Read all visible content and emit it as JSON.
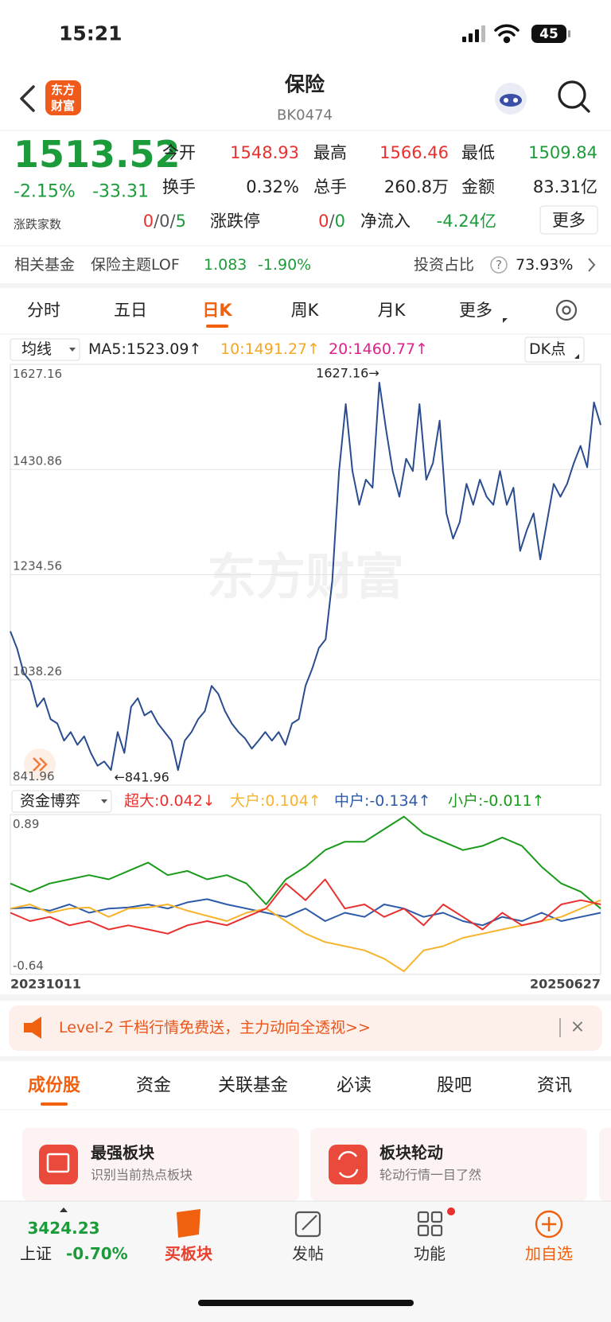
{
  "status_bar": {
    "time": "15:21",
    "battery": "45"
  },
  "header": {
    "logo": [
      "东方",
      "财富"
    ],
    "title": "保险",
    "code": "BK0474"
  },
  "quote": {
    "price": "1513.52",
    "change_pct": "-2.15%",
    "change": "-33.31",
    "stats": [
      {
        "label": "今开",
        "value": "1548.93",
        "color": "#e8312f"
      },
      {
        "label": "最高",
        "value": "1566.46",
        "color": "#e8312f"
      },
      {
        "label": "最低",
        "value": "1509.84",
        "color": "#1c9b3a"
      },
      {
        "label": "换手",
        "value": "0.32%",
        "color": "#222"
      },
      {
        "label": "总手",
        "value": "260.8万",
        "color": "#222"
      },
      {
        "label": "金额",
        "value": "83.31亿",
        "color": "#222"
      }
    ],
    "breadth_label": "涨跌家数",
    "breadth": [
      {
        "text": "0",
        "color": "#e8312f"
      },
      {
        "text": "/0/",
        "color": "#555"
      },
      {
        "text": "5",
        "color": "#1c9b3a"
      }
    ],
    "limit_label": "涨跌停",
    "limit": [
      {
        "text": "0",
        "color": "#e8312f"
      },
      {
        "text": "/",
        "color": "#555"
      },
      {
        "text": "0",
        "color": "#1c9b3a"
      }
    ],
    "net_inflow_label": "净流入",
    "net_inflow": "-4.24亿",
    "more": "更多"
  },
  "fund": {
    "label": "相关基金",
    "name": "保险主题LOF",
    "price": "1.083",
    "change": "-1.90%",
    "ratio_label": "投资占比",
    "help": "?",
    "ratio": "73.93%"
  },
  "period_tabs": {
    "items": [
      "分时",
      "五日",
      "日K",
      "周K",
      "月K",
      "更多"
    ],
    "active": 2
  },
  "indicator": {
    "selector": "均线",
    "labels": [
      {
        "text": "MA5:1523.09↑",
        "color": "#222"
      },
      {
        "text": "10:1491.27↑",
        "color": "#f5a623"
      },
      {
        "text": "20:1460.77↑",
        "color": "#e0218a"
      }
    ],
    "dk": "DK点"
  },
  "flow_selector": "资金博弈",
  "chart_data": [
    {
      "type": "line",
      "values": [
        1129,
        1097,
        1051,
        1035,
        988,
        1004,
        965,
        957,
        925,
        941,
        917,
        933,
        902,
        878,
        886,
        870,
        941,
        902,
        988,
        1004,
        972,
        980,
        957,
        941,
        925,
        870,
        925,
        941,
        965,
        980,
        1027,
        1012,
        980,
        957,
        941,
        929,
        910,
        925,
        941,
        925,
        941,
        917,
        957,
        965,
        1027,
        1059,
        1098,
        1114,
        1224,
        1428,
        1553,
        1428,
        1365,
        1412,
        1397,
        1593,
        1506,
        1428,
        1380,
        1451,
        1428,
        1553,
        1412,
        1443,
        1522,
        1349,
        1302,
        1333,
        1404,
        1365,
        1412,
        1380,
        1365,
        1428,
        1365,
        1397,
        1279,
        1318,
        1349,
        1263,
        1333,
        1404,
        1380,
        1404,
        1443,
        1475,
        1435,
        1556,
        1514
      ],
      "color": "#2a4d8f",
      "ylim": [
        841.96,
        1627.16
      ],
      "yticks": [
        1627.16,
        1430.86,
        1234.56,
        1038.26,
        841.96
      ],
      "grid": true,
      "annotations": {
        "max": "1627.16→",
        "min": "←841.96"
      },
      "watermark": "东方财富"
    },
    {
      "type": "line",
      "series": [
        {
          "name": "超大:0.042↓",
          "color": "#e8312f",
          "values": [
            -0.05,
            -0.13,
            -0.09,
            -0.17,
            -0.13,
            -0.21,
            -0.17,
            -0.21,
            -0.25,
            -0.17,
            -0.13,
            -0.17,
            -0.09,
            -0.01,
            0.23,
            0.07,
            0.27,
            -0.01,
            0.03,
            -0.09,
            -0.01,
            -0.17,
            0.03,
            -0.09,
            -0.21,
            -0.05,
            -0.17,
            -0.13,
            0.03,
            0.07,
            0.03
          ]
        },
        {
          "name": "大户:0.104↑",
          "color": "#f7b32b",
          "values": [
            -0.01,
            0.03,
            -0.05,
            -0.01,
            0.0,
            -0.09,
            -0.01,
            0.0,
            0.03,
            -0.03,
            -0.08,
            -0.13,
            -0.05,
            -0.01,
            -0.13,
            -0.25,
            -0.33,
            -0.37,
            -0.41,
            -0.49,
            -0.61,
            -0.41,
            -0.37,
            -0.29,
            -0.25,
            -0.21,
            -0.17,
            -0.13,
            -0.09,
            -0.01,
            0.07
          ]
        },
        {
          "name": "中户:-0.134↑",
          "color": "#2d5aa8",
          "values": [
            -0.01,
            0.0,
            -0.03,
            0.03,
            -0.05,
            -0.01,
            0.0,
            0.03,
            -0.01,
            0.05,
            0.08,
            0.03,
            -0.01,
            -0.05,
            -0.09,
            -0.01,
            -0.13,
            -0.05,
            -0.09,
            0.03,
            -0.01,
            -0.09,
            -0.05,
            -0.13,
            -0.17,
            -0.09,
            -0.13,
            -0.05,
            -0.13,
            -0.09,
            -0.05
          ]
        },
        {
          "name": "小户:-0.011↑",
          "color": "#1a9a1a",
          "values": [
            0.23,
            0.15,
            0.23,
            0.27,
            0.31,
            0.27,
            0.35,
            0.43,
            0.31,
            0.35,
            0.27,
            0.31,
            0.23,
            0.03,
            0.27,
            0.39,
            0.55,
            0.63,
            0.63,
            0.75,
            0.87,
            0.71,
            0.63,
            0.55,
            0.59,
            0.67,
            0.59,
            0.39,
            0.23,
            0.15,
            -0.01
          ]
        }
      ],
      "ylim": [
        -0.64,
        0.89
      ],
      "yticks": [
        0.89,
        -0.64
      ],
      "x_labels": [
        "20231011",
        "20250627"
      ]
    }
  ],
  "banner": {
    "text": "Level-2 千档行情免费送，主力动向全透视>>",
    "close": "×"
  },
  "content_tabs": {
    "items": [
      "成份股",
      "资金",
      "关联基金",
      "必读",
      "股吧",
      "资讯"
    ],
    "active": 0
  },
  "cards": [
    {
      "title": "最强板块",
      "subtitle": "识别当前热点板块"
    },
    {
      "title": "板块轮动",
      "subtitle": "轮动行情一目了然"
    }
  ],
  "bottom_bar": {
    "index_value": "3424.23",
    "index_name": "上证",
    "index_change": "-0.70%",
    "items": [
      {
        "text": "买板块",
        "color": "#e8412f"
      },
      {
        "text": "发帖",
        "color": "#333"
      },
      {
        "text": "功能",
        "color": "#333"
      },
      {
        "text": "加自选",
        "color": "#f0600e"
      }
    ]
  }
}
